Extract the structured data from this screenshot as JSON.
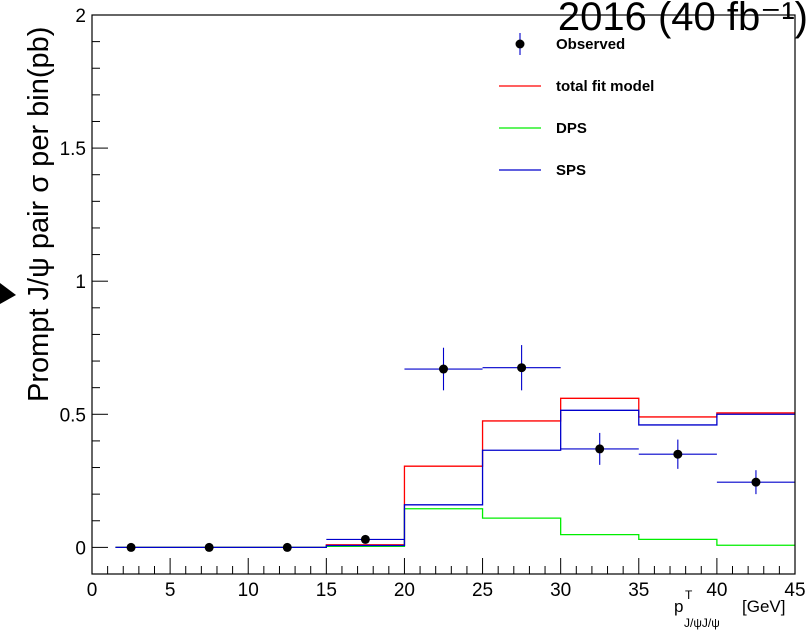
{
  "chart_data": {
    "type": "histogram",
    "title": "2016 (40 fb⁻¹)",
    "ylabel": "Prompt J/ψ pair σ per bin(pb)",
    "xlabel": "p",
    "xlabel_sup": "T",
    "xlabel_sub": "J/ψJ/ψ",
    "xlabel_unit": "[GeV]",
    "xlim": [
      0,
      45
    ],
    "ylim": [
      -0.1,
      2
    ],
    "x_ticks": [
      0,
      5,
      10,
      15,
      20,
      25,
      30,
      35,
      40,
      45
    ],
    "y_ticks": [
      0,
      0.5,
      1,
      1.5,
      2
    ],
    "y_tick_labels": [
      "0",
      "0.5",
      "1",
      "1.5",
      "2"
    ],
    "bin_edges": [
      0,
      5,
      10,
      15,
      20,
      25,
      30,
      35,
      40,
      45
    ],
    "observed": {
      "name": "Observed",
      "color": "#000000",
      "x": [
        2.5,
        7.5,
        12.5,
        17.5,
        22.5,
        27.5,
        32.5,
        37.5,
        42.5
      ],
      "y": [
        0.0,
        0.0,
        0.0,
        0.03,
        0.67,
        0.675,
        0.37,
        0.35,
        0.245
      ],
      "y_err": [
        0.0,
        0.0,
        0.0,
        0.015,
        0.08,
        0.085,
        0.06,
        0.055,
        0.045
      ],
      "x_err": [
        0,
        0,
        0,
        2.5,
        2.5,
        2.5,
        2.5,
        2.5,
        2.5
      ]
    },
    "series": [
      {
        "name": "total fit model",
        "color": "#ff0000",
        "values": [
          0.0,
          0.0,
          0.0,
          0.01,
          0.305,
          0.475,
          0.56,
          0.49,
          0.505
        ],
        "start": 1.5
      },
      {
        "name": "DPS",
        "color": "#00ee00",
        "values": [
          0.0,
          0.0,
          0.0,
          0.004,
          0.145,
          0.11,
          0.048,
          0.03,
          0.008
        ],
        "start": 1.5
      },
      {
        "name": "SPS",
        "color": "#0000cc",
        "values": [
          0.0,
          0.0,
          0.0,
          0.007,
          0.16,
          0.365,
          0.515,
          0.46,
          0.5
        ],
        "start": 1.5
      }
    ],
    "legend_position": "top-right",
    "grid": false
  }
}
